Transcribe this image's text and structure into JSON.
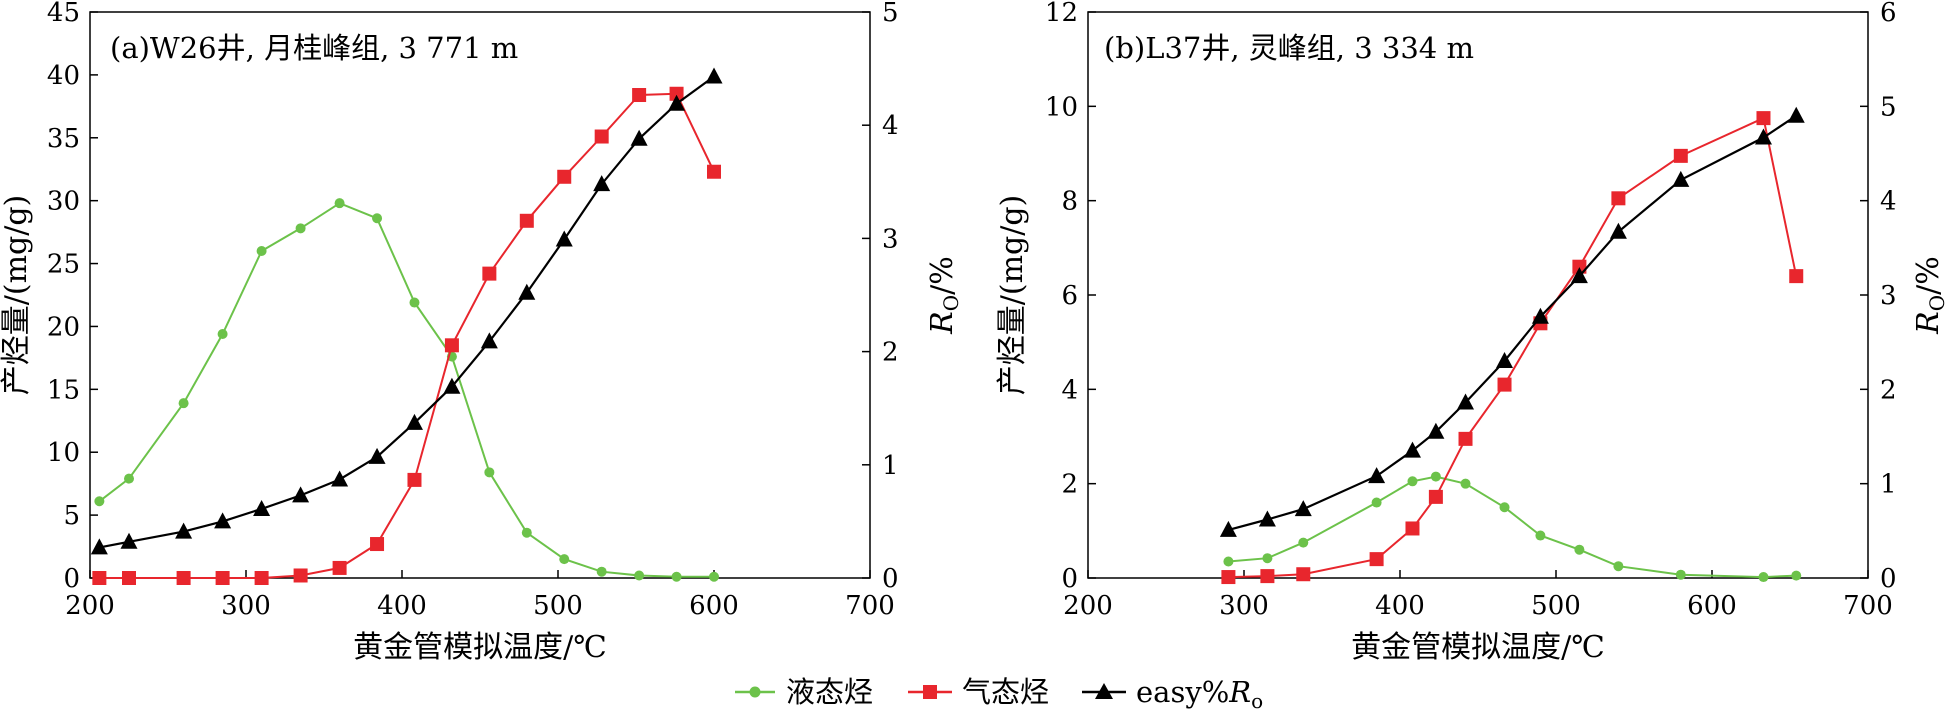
{
  "colors": {
    "liquid": "#6cc24a",
    "gas": "#e8262d",
    "ro": "#000000"
  },
  "icons": {
    "liquid": "circle-marker",
    "gas": "square-marker",
    "ro": "triangle-marker"
  },
  "legend": {
    "liquid": "液态烃",
    "gas": "气态烃",
    "ro_prefix": "easy%",
    "ro_r": "R",
    "ro_sub": "o"
  },
  "chart_data": [
    {
      "type": "line",
      "title": "(a)W26井, 月桂峰组, 3 771 m",
      "xlabel": "黄金管模拟温度/℃",
      "ylabel": "产烃量/(mg/g)",
      "y2label_main": "R",
      "y2label_sub": "O",
      "y2label_tail": "/%",
      "xlim": [
        200,
        700
      ],
      "ylim": [
        0,
        45
      ],
      "y2lim": [
        0,
        5
      ],
      "xticks": [
        "200",
        "300",
        "400",
        "500",
        "600",
        "700"
      ],
      "yticks": [
        "0",
        "5",
        "10",
        "15",
        "20",
        "25",
        "30",
        "35",
        "40",
        "45"
      ],
      "y2ticks": [
        "0",
        "1",
        "2",
        "3",
        "4",
        "5"
      ],
      "series": [
        {
          "key": "liquid",
          "name": "液态烃",
          "axis": "left",
          "x": [
            206,
            225,
            260,
            285,
            310,
            335,
            360,
            384,
            408,
            432,
            456,
            480,
            504,
            528,
            552,
            576,
            600
          ],
          "y": [
            6.1,
            7.9,
            13.9,
            19.4,
            26.0,
            27.8,
            29.8,
            28.6,
            21.9,
            17.6,
            8.4,
            3.6,
            1.5,
            0.5,
            0.2,
            0.1,
            0.1
          ]
        },
        {
          "key": "gas",
          "name": "气态烃",
          "axis": "left",
          "x": [
            206,
            225,
            260,
            285,
            310,
            335,
            360,
            384,
            408,
            432,
            456,
            480,
            504,
            528,
            552,
            576,
            600
          ],
          "y": [
            0,
            0,
            0,
            0,
            0,
            0.2,
            0.8,
            2.7,
            7.8,
            18.5,
            24.2,
            28.4,
            31.9,
            35.1,
            38.4,
            38.5,
            32.3
          ]
        },
        {
          "key": "ro",
          "name": "easy%Ro",
          "axis": "right",
          "x": [
            206,
            225,
            260,
            285,
            310,
            335,
            360,
            384,
            408,
            432,
            456,
            480,
            504,
            528,
            552,
            576,
            600
          ],
          "y": [
            0.27,
            0.32,
            0.41,
            0.5,
            0.61,
            0.73,
            0.87,
            1.07,
            1.37,
            1.69,
            2.09,
            2.52,
            2.99,
            3.48,
            3.88,
            4.19,
            4.43
          ]
        }
      ]
    },
    {
      "type": "line",
      "title": "(b)L37井, 灵峰组, 3 334 m",
      "xlabel": "黄金管模拟温度/℃",
      "ylabel": "产烃量/(mg/g)",
      "y2label_main": "R",
      "y2label_sub": "O",
      "y2label_tail": "/%",
      "xlim": [
        200,
        700
      ],
      "ylim": [
        0,
        12
      ],
      "y2lim": [
        0,
        6
      ],
      "xticks": [
        "200",
        "300",
        "400",
        "500",
        "600",
        "700"
      ],
      "yticks": [
        "0",
        "2",
        "4",
        "6",
        "8",
        "10",
        "12"
      ],
      "y2ticks": [
        "0",
        "1",
        "2",
        "3",
        "4",
        "5",
        "6"
      ],
      "series": [
        {
          "key": "liquid",
          "name": "液态烃",
          "axis": "left",
          "x": [
            290,
            315,
            338,
            385,
            408,
            423,
            442,
            467,
            490,
            515,
            540,
            580,
            633,
            654
          ],
          "y": [
            0.35,
            0.42,
            0.75,
            1.6,
            2.05,
            2.15,
            2.0,
            1.5,
            0.9,
            0.6,
            0.25,
            0.07,
            0.02,
            0.05
          ]
        },
        {
          "key": "gas",
          "name": "气态烃",
          "axis": "left",
          "x": [
            290,
            315,
            338,
            385,
            408,
            423,
            442,
            467,
            490,
            515,
            540,
            580,
            633,
            654
          ],
          "y": [
            0.02,
            0.04,
            0.08,
            0.4,
            1.05,
            1.72,
            2.95,
            4.1,
            5.4,
            6.6,
            8.05,
            8.95,
            9.75,
            6.4
          ]
        },
        {
          "key": "ro",
          "name": "easy%Ro",
          "axis": "right",
          "x": [
            290,
            315,
            338,
            385,
            408,
            423,
            442,
            467,
            490,
            515,
            540,
            580,
            633,
            654
          ],
          "y": [
            0.51,
            0.62,
            0.73,
            1.08,
            1.35,
            1.55,
            1.86,
            2.3,
            2.77,
            3.2,
            3.67,
            4.22,
            4.67,
            4.9
          ]
        }
      ]
    }
  ]
}
